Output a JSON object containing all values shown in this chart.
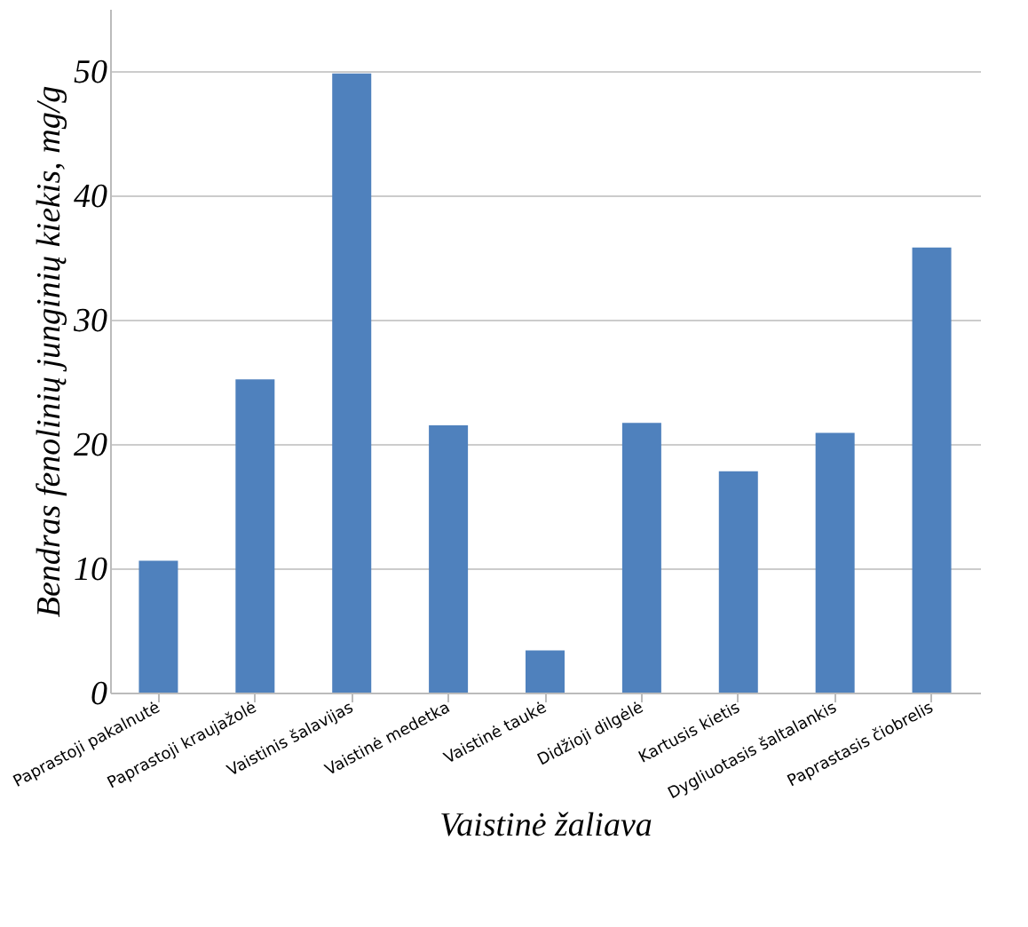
{
  "chart_data": {
    "type": "bar",
    "xlabel": "Vaistinė žaliava",
    "ylabel": "Bendras fenolinių junginių kiekis, mg/g",
    "categories": [
      "Paprastoji pakalnutė",
      "Paprastoji kraujažolė",
      "Vaistinis šalavijas",
      "Vaistinė medetka",
      "Vaistinė taukė",
      "Didžioji dilgėlė",
      "Kartusis kietis",
      "Dygliuotasis šaltalankis",
      "Paprastasis čiobrelis"
    ],
    "values": [
      10.6,
      25.2,
      49.8,
      21.5,
      3.4,
      21.7,
      17.8,
      20.9,
      35.8
    ],
    "color": "#4f81bd",
    "ylim": [
      0,
      55
    ],
    "yticks": [
      0,
      10,
      20,
      30,
      40,
      50
    ],
    "grid": "y"
  }
}
